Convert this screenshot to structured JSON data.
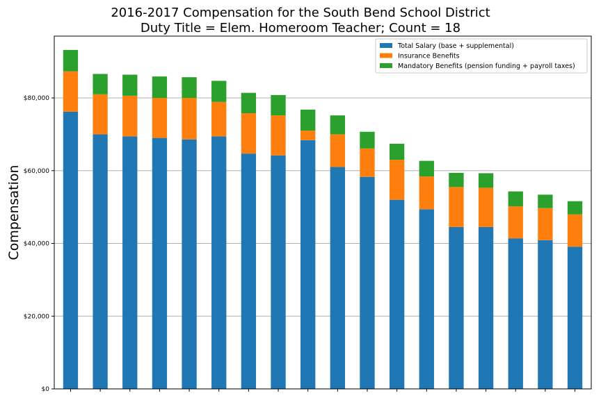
{
  "chart_data": {
    "type": "bar",
    "stacked": true,
    "title": "2016-2017 Compensation for the South Bend School District",
    "subtitle": "Duty Title = Elem. Homeroom Teacher; Count = 18",
    "xlabel": "",
    "ylabel": "Compensation",
    "ylim": [
      0,
      97000
    ],
    "yticks": [
      0,
      20000,
      40000,
      60000,
      80000
    ],
    "ytick_labels": [
      "$0",
      "$20,000",
      "$40,000",
      "$60,000",
      "$80,000"
    ],
    "grid": "horizontal",
    "legend_position": "top-right",
    "categories": [
      "",
      "",
      "",
      "",
      "",
      "",
      "",
      "",
      "",
      "",
      "",
      "",
      "",
      "",
      "",
      "",
      "",
      ""
    ],
    "series": [
      {
        "name": "Total Salary (base + supplemental)",
        "color": "#1f77b4",
        "values": [
          76200,
          70000,
          69400,
          69000,
          68600,
          69400,
          64700,
          64200,
          68400,
          61000,
          58300,
          52000,
          49400,
          44500,
          44500,
          41400,
          40900,
          39100
        ]
      },
      {
        "name": "Insurance Benefits",
        "color": "#ff7f0e",
        "values": [
          11100,
          11000,
          11200,
          11000,
          11400,
          9500,
          11100,
          11000,
          2600,
          9000,
          7800,
          11000,
          9000,
          11000,
          10800,
          8800,
          8800,
          8900
        ]
      },
      {
        "name": "Mandatory Benefits (pension funding + payroll taxes)",
        "color": "#2ca02c",
        "values": [
          5900,
          5600,
          5800,
          5900,
          5700,
          5800,
          5600,
          5600,
          5800,
          5200,
          4600,
          4400,
          4300,
          3900,
          4000,
          4100,
          3700,
          3600
        ]
      }
    ]
  }
}
